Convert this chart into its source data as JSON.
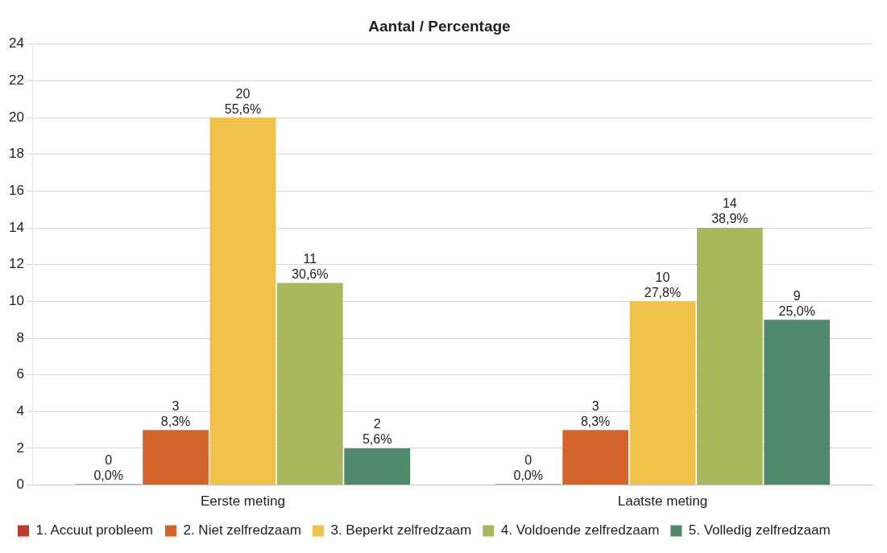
{
  "chart_data": {
    "type": "bar",
    "title": "Aantal / Percentage",
    "categories": [
      "Eerste meting",
      "Laatste meting"
    ],
    "series": [
      {
        "name": "1. Accuut probleem",
        "color": "#c0392b",
        "values": [
          0,
          0
        ],
        "value_labels": [
          "0\n0,0%",
          "0\n0,0%"
        ]
      },
      {
        "name": "2. Niet zelfredzaam",
        "color": "#d2642c",
        "values": [
          3,
          3
        ],
        "value_labels": [
          "3\n8,3%",
          "3\n8,3%"
        ]
      },
      {
        "name": "3. Beperkt zelfredzaam",
        "color": "#f0c24a",
        "values": [
          20,
          10
        ],
        "value_labels": [
          "20\n55,6%",
          "10\n27,8%"
        ]
      },
      {
        "name": "4. Voldoende zelfredzaam",
        "color": "#a9b85c",
        "values": [
          11,
          14
        ],
        "value_labels": [
          "11\n30,6%",
          "14\n38,9%"
        ]
      },
      {
        "name": "5. Volledig zelfredzaam",
        "color": "#4f8a6c",
        "values": [
          2,
          9
        ],
        "value_labels": [
          "2\n5,6%",
          "9\n25,0%"
        ]
      }
    ],
    "ylim": [
      0,
      24
    ],
    "yticks": [
      0,
      2,
      4,
      6,
      8,
      10,
      12,
      14,
      16,
      18,
      20,
      22,
      24
    ],
    "grid": "y",
    "legend": "bottom left"
  }
}
